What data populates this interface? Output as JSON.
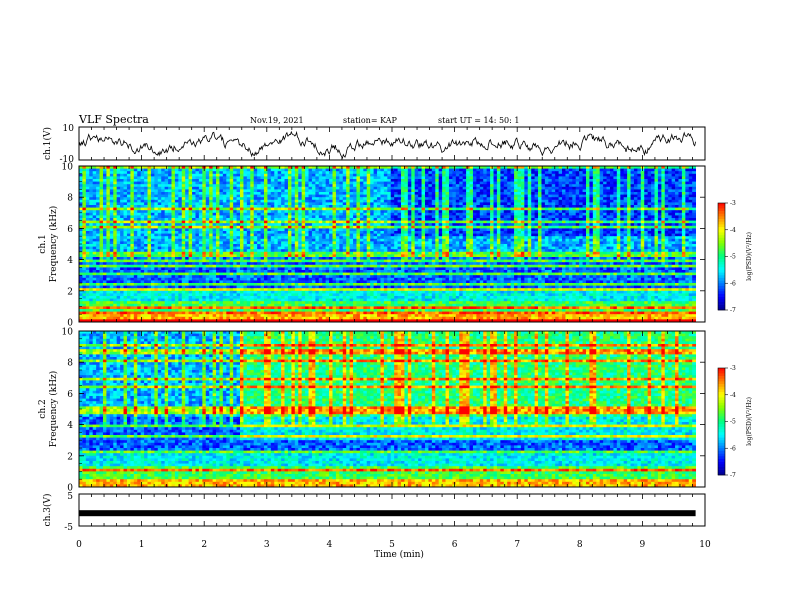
{
  "header": {
    "title": "VLF Spectra",
    "date": "Nov.19, 2021",
    "station": "station= KAP",
    "start": "start  UT  =   14: 50: 1"
  },
  "chart_data": [
    {
      "type": "line",
      "name": "ch1-voltage",
      "ylabel": "ch.1(V)",
      "ylim": [
        -10,
        10
      ],
      "tick_labels": [
        "10",
        "-10"
      ],
      "xlim": [
        0,
        10
      ],
      "approx_level": 0,
      "approx_amplitude": 5,
      "x_end": 9.85
    },
    {
      "type": "heatmap",
      "name": "ch1-spectrogram",
      "ylabel_top": "ch.1",
      "ylabel": "Frequency  (kHz)",
      "ylim": [
        0,
        10
      ],
      "yticks": [
        0,
        2,
        4,
        6,
        8,
        10
      ],
      "xlim": [
        0,
        10
      ],
      "x_end": 9.85,
      "colorbar": {
        "label": "log(PSD)(V²/Hz)",
        "range": [
          -7,
          -3
        ],
        "ticks": [
          "-3",
          "-4",
          "-5",
          "-6",
          "-7"
        ]
      }
    },
    {
      "type": "heatmap",
      "name": "ch2-spectrogram",
      "ylabel_top": "ch.2",
      "ylabel": "Frequency  (kHz)",
      "ylim": [
        0,
        10
      ],
      "yticks": [
        0,
        2,
        4,
        6,
        8,
        10
      ],
      "xlim": [
        0,
        10
      ],
      "x_end": 9.85,
      "colorbar": {
        "label": "log(PSD)(V²/Hz)",
        "range": [
          -7,
          -3
        ],
        "ticks": [
          "-3",
          "-4",
          "-5",
          "-6",
          "-7"
        ]
      }
    },
    {
      "type": "line",
      "name": "ch3-voltage",
      "ylabel": "ch.3(V)",
      "ylim": [
        -5,
        5
      ],
      "tick_labels": [
        "5",
        "-5"
      ],
      "xlim": [
        0,
        10
      ],
      "approx_level": -1,
      "x_end": 9.85,
      "xlabel": "Time  (min)",
      "xticks": [
        "0",
        "1",
        "2",
        "3",
        "4",
        "5",
        "6",
        "7",
        "8",
        "9",
        "10"
      ]
    }
  ],
  "colors": {
    "colormap": [
      "#00008b",
      "#0000ff",
      "#0080ff",
      "#00ffff",
      "#00ff80",
      "#80ff00",
      "#ffff00",
      "#ff8000",
      "#ff0000",
      "#ffffff"
    ],
    "frame": "#000000",
    "trace": "#000000"
  }
}
